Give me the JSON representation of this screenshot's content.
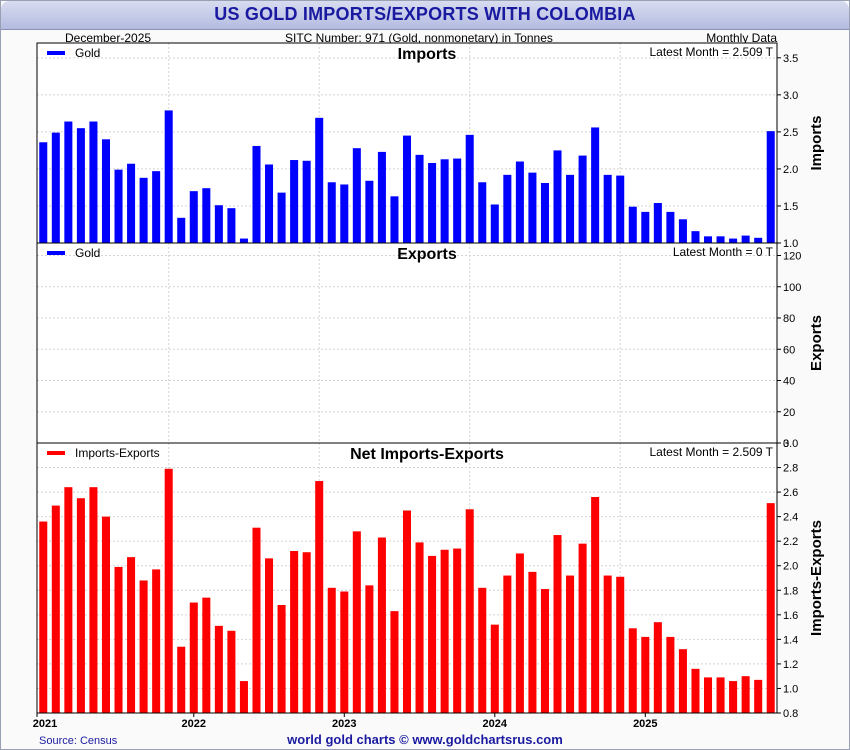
{
  "header": {
    "title": "US GOLD IMPORTS/EXPORTS WITH COLOMBIA",
    "date": "December-2025",
    "sitc": "SITC Number: 971 (Gold, nonmonetary) in Tonnes",
    "frequency": "Monthly Data"
  },
  "footer": {
    "source": "Source: Census",
    "credit": "world gold charts © www.goldchartsrus.com"
  },
  "colors": {
    "imports": "#0000ff",
    "exports": "#0000ff",
    "net": "#ff0000",
    "title": "#1a1aa0"
  },
  "chart_data": [
    {
      "type": "bar",
      "title": "Imports",
      "legend": "Gold",
      "latest": "Latest Month = 2.509 T",
      "ylabel": "Imports",
      "ylim": [
        1.0,
        3.7
      ],
      "yticks": [
        "1.0",
        "1.5",
        "2.0",
        "2.5",
        "3.0",
        "3.5"
      ],
      "values": [
        2.36,
        2.49,
        2.64,
        2.55,
        2.64,
        2.4,
        1.99,
        2.07,
        1.88,
        1.97,
        2.79,
        1.34,
        1.7,
        1.74,
        1.51,
        1.47,
        1.06,
        2.31,
        2.06,
        1.68,
        2.12,
        2.11,
        2.69,
        1.82,
        1.79,
        2.28,
        1.84,
        2.23,
        1.63,
        2.45,
        2.19,
        2.08,
        2.13,
        2.14,
        2.46,
        1.82,
        1.52,
        1.92,
        2.1,
        1.95,
        1.81,
        2.25,
        1.92,
        2.18,
        2.56,
        1.92,
        1.91,
        1.49,
        1.42,
        1.54,
        1.42,
        1.32,
        1.16,
        1.09,
        1.09,
        1.06,
        1.1,
        1.07,
        2.51
      ]
    },
    {
      "type": "bar",
      "title": "Exports",
      "legend": "Gold",
      "latest": "Latest Month = 0 T",
      "ylabel": "Exports",
      "ylim": [
        0,
        128
      ],
      "yticks": [
        "0",
        "20",
        "40",
        "60",
        "80",
        "100",
        "120"
      ],
      "values": [
        0,
        0,
        0,
        0,
        0,
        0,
        0,
        0,
        0,
        0,
        0,
        0,
        0,
        0,
        0,
        0,
        0,
        0,
        0,
        0,
        0,
        0,
        0,
        0,
        0,
        0,
        0,
        0,
        0,
        0,
        0,
        0,
        0,
        0,
        0,
        0,
        0,
        0,
        0,
        0,
        0,
        0,
        0,
        0,
        0,
        0,
        0,
        0,
        0,
        0,
        0,
        0,
        0,
        0,
        0,
        0,
        0,
        0,
        0
      ]
    },
    {
      "type": "bar",
      "title": "Net Imports-Exports",
      "legend": "Imports-Exports",
      "latest": "Latest Month = 2.509 T",
      "ylabel": "Imports-Exports",
      "ylim": [
        0.8,
        3.0
      ],
      "yticks": [
        "0.8",
        "1.0",
        "1.2",
        "1.4",
        "1.6",
        "1.8",
        "2.0",
        "2.2",
        "2.4",
        "2.6",
        "2.8",
        "3.0"
      ],
      "values": [
        2.36,
        2.49,
        2.64,
        2.55,
        2.64,
        2.4,
        1.99,
        2.07,
        1.88,
        1.97,
        2.79,
        1.34,
        1.7,
        1.74,
        1.51,
        1.47,
        1.06,
        2.31,
        2.06,
        1.68,
        2.12,
        2.11,
        2.69,
        1.82,
        1.79,
        2.28,
        1.84,
        2.23,
        1.63,
        2.45,
        2.19,
        2.08,
        2.13,
        2.14,
        2.46,
        1.82,
        1.52,
        1.92,
        2.1,
        1.95,
        1.81,
        2.25,
        1.92,
        2.18,
        2.56,
        1.92,
        1.91,
        1.49,
        1.42,
        1.54,
        1.42,
        1.32,
        1.16,
        1.09,
        1.09,
        1.06,
        1.1,
        1.07,
        2.51
      ]
    }
  ],
  "x_axis": {
    "year_labels": [
      "2021",
      "2022",
      "2023",
      "2024",
      "2025"
    ]
  }
}
